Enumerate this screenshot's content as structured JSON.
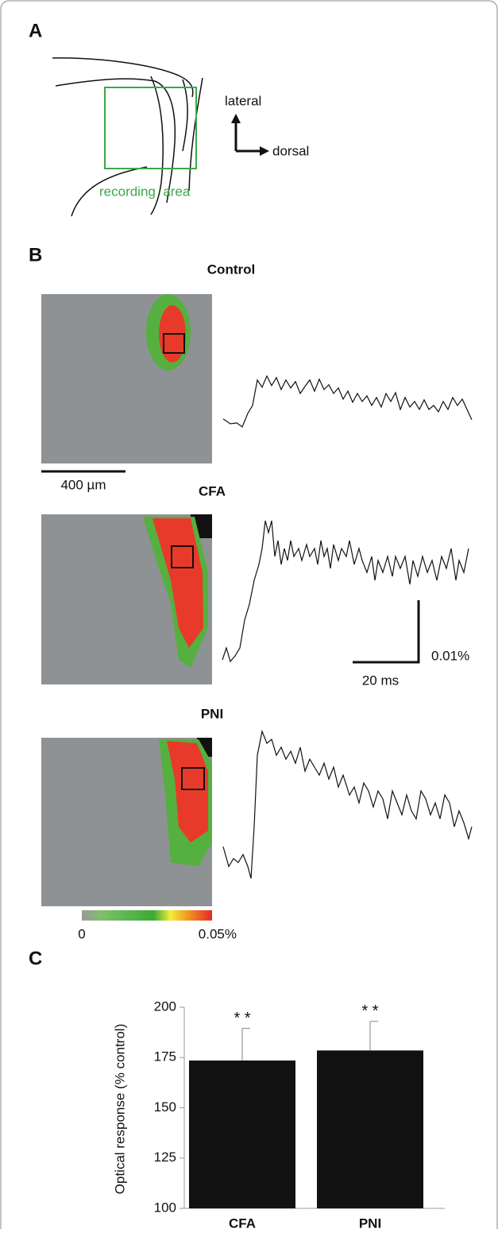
{
  "panels": {
    "a": {
      "label": "A",
      "lateral": "lateral",
      "dorsal": "dorsal",
      "region": "recording  area"
    },
    "b": {
      "label": "B",
      "conditions": [
        "Control",
        "CFA",
        "PNI"
      ],
      "scale_bar": "400 µm",
      "amplitude_bar": "0.01%",
      "time_bar": "20 ms",
      "colorbar": [
        "0",
        "0.05%"
      ]
    },
    "c": {
      "label": "C"
    }
  },
  "chart_data": {
    "type": "bar",
    "y_label": "Optical response (% control)",
    "categories": [
      "CFA",
      "PNI"
    ],
    "values": [
      173.5,
      178.5
    ],
    "errors": [
      16,
      14.5
    ],
    "annotations": [
      "* *",
      "* *"
    ],
    "color": "#111111",
    "ylim": [
      100,
      200
    ],
    "yticks": [
      100,
      125,
      150,
      175,
      200
    ]
  }
}
